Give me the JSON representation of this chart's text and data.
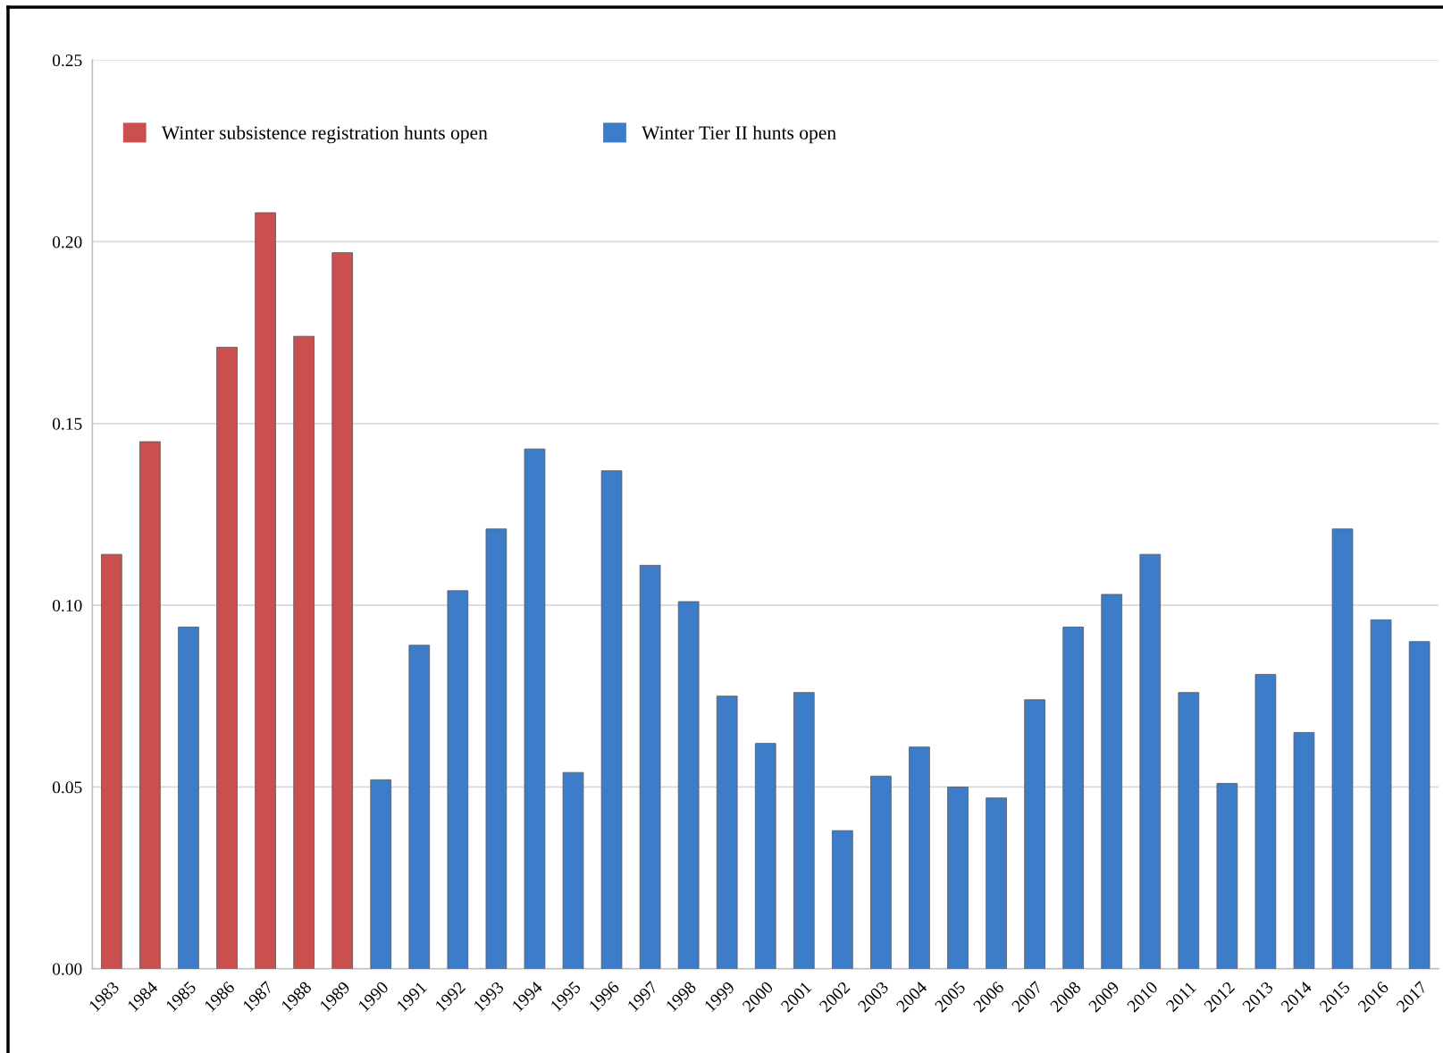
{
  "chart_data": {
    "type": "bar",
    "categories": [
      "1983",
      "1984",
      "1985",
      "1986",
      "1987",
      "1988",
      "1989",
      "1990",
      "1991",
      "1992",
      "1993",
      "1994",
      "1995",
      "1996",
      "1997",
      "1998",
      "1999",
      "2000",
      "2001",
      "2002",
      "2003",
      "2004",
      "2005",
      "2006",
      "2007",
      "2008",
      "2009",
      "2010",
      "2011",
      "2012",
      "2013",
      "2014",
      "2015",
      "2016",
      "2017"
    ],
    "series": [
      {
        "name": "Winter subsistence registration hunts open",
        "color": "#c9504e",
        "values": [
          0.114,
          0.145,
          null,
          0.171,
          0.208,
          0.174,
          0.197,
          null,
          null,
          null,
          null,
          null,
          null,
          null,
          null,
          null,
          null,
          null,
          null,
          null,
          null,
          null,
          null,
          null,
          null,
          null,
          null,
          null,
          null,
          null,
          null,
          null,
          null,
          null,
          null
        ]
      },
      {
        "name": "Winter Tier II hunts open",
        "color": "#3d7cc9",
        "values": [
          null,
          null,
          0.094,
          null,
          null,
          null,
          null,
          0.052,
          0.089,
          0.104,
          0.121,
          0.143,
          0.054,
          0.137,
          0.111,
          0.101,
          0.075,
          0.062,
          0.076,
          0.038,
          0.053,
          0.061,
          0.05,
          0.047,
          0.074,
          0.094,
          0.103,
          0.114,
          0.076,
          0.051,
          0.081,
          0.065,
          0.121,
          0.096,
          0.09
        ]
      }
    ],
    "ylim": [
      0,
      0.25
    ],
    "yticks": [
      {
        "value": 0,
        "label": "0.00"
      },
      {
        "value": 0.05,
        "label": "0.05"
      },
      {
        "value": 0.1,
        "label": "0.10"
      },
      {
        "value": 0.15,
        "label": "0.15"
      },
      {
        "value": 0.2,
        "label": "0.20"
      },
      {
        "value": 0.25,
        "label": "0.25"
      }
    ],
    "grid": "y",
    "legend": "top left"
  }
}
